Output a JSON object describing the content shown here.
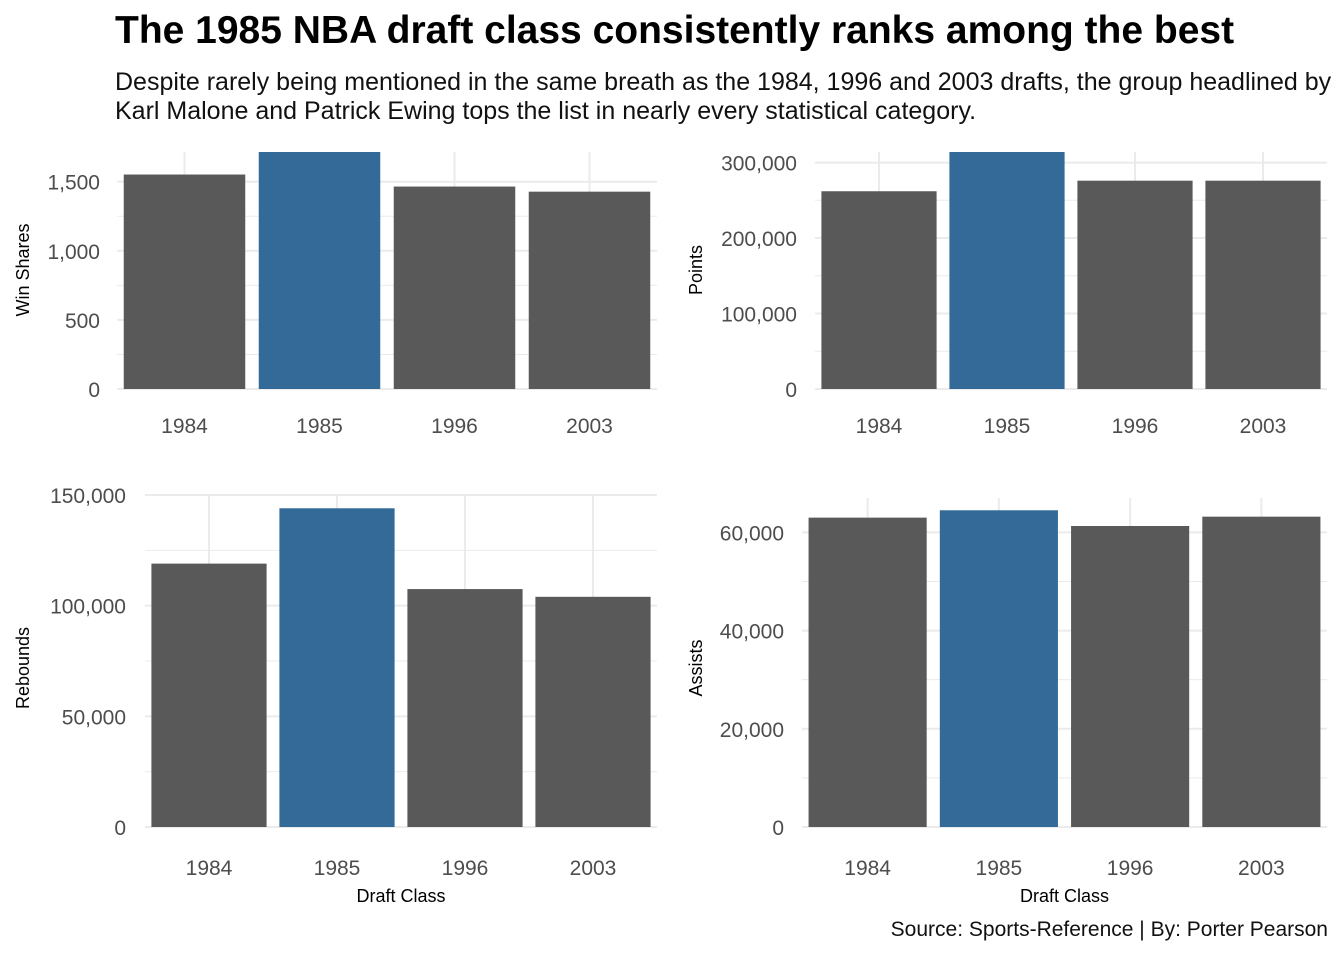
{
  "title": "The 1985 NBA draft class consistently ranks among the best",
  "subtitle_lines": [
    "Despite rarely being mentioned in the same breath as the 1984, 1996 and 2003 drafts, the group headlined by",
    "Karl Malone and Patrick Ewing tops the list in nearly every statistical category."
  ],
  "caption": "Source: Sports-Reference | By: Porter Pearson",
  "colors": {
    "highlight": "#346a98",
    "default": "#595959",
    "grid": "#ebebeb",
    "tick_text": "#4d4d4d"
  },
  "chart_data": [
    {
      "type": "bar",
      "categories": [
        "1984",
        "1985",
        "1996",
        "2003"
      ],
      "values": [
        1552,
        1715,
        1465,
        1428
      ],
      "highlight": "1985",
      "ylabel": "Win Shares",
      "xlabel": "",
      "ylim": [
        0,
        1715
      ],
      "yticks": [
        0,
        500,
        1000,
        1500
      ],
      "ytick_labels": [
        "0",
        "500",
        "1,000",
        "1,500"
      ],
      "grid": true
    },
    {
      "type": "bar",
      "categories": [
        "1984",
        "1985",
        "1996",
        "2003"
      ],
      "values": [
        262000,
        314000,
        276000,
        276000
      ],
      "highlight": "1985",
      "ylabel": "Points",
      "xlabel": "",
      "ylim": [
        0,
        314000
      ],
      "yticks": [
        0,
        100000,
        200000,
        300000
      ],
      "ytick_labels": [
        "0",
        "100,000",
        "200,000",
        "300,000"
      ],
      "grid": true
    },
    {
      "type": "bar",
      "categories": [
        "1984",
        "1985",
        "1996",
        "2003"
      ],
      "values": [
        119000,
        144000,
        107500,
        104000
      ],
      "highlight": "1985",
      "ylabel": "Rebounds",
      "xlabel": "Draft Class",
      "ylim": [
        0,
        150000
      ],
      "yticks": [
        0,
        50000,
        100000,
        150000
      ],
      "ytick_labels": [
        "0",
        "50,000",
        "100,000",
        "150,000"
      ],
      "grid": true
    },
    {
      "type": "bar",
      "categories": [
        "1984",
        "1985",
        "1996",
        "2003"
      ],
      "values": [
        63000,
        64500,
        61300,
        63200
      ],
      "highlight": "1985",
      "ylabel": "Assists",
      "xlabel": "Draft Class",
      "ylim": [
        0,
        67000
      ],
      "yticks": [
        0,
        20000,
        40000,
        60000
      ],
      "ytick_labels": [
        "0",
        "20,000",
        "40,000",
        "60,000"
      ],
      "grid": true
    }
  ]
}
